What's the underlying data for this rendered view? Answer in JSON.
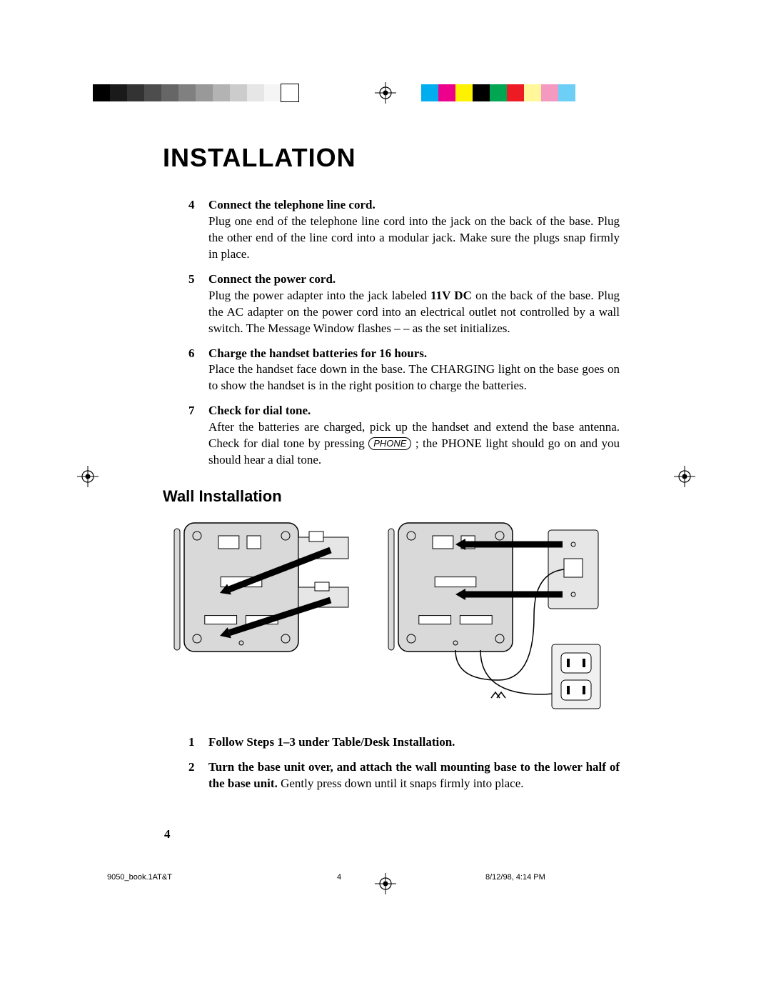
{
  "print_marks": {
    "gray_swatches": [
      "#000000",
      "#1a1a1a",
      "#333333",
      "#4d4d4d",
      "#666666",
      "#808080",
      "#999999",
      "#b3b3b3",
      "#cccccc",
      "#e6e6e6",
      "#f5f5f5",
      "#ffffff"
    ],
    "color_swatches": [
      "#00aeef",
      "#ec008c",
      "#fff200",
      "#000000",
      "#00a651",
      "#ed1c24",
      "#fff799",
      "#f49ac1",
      "#6dcff6"
    ],
    "target_stroke": "#000000"
  },
  "title": "INSTALLATION",
  "steps_a": [
    {
      "num": "4",
      "heading": "Connect the telephone line cord.",
      "text": "Plug one end of the telephone line cord into the jack on the back of the base. Plug the other end of the line cord into a modular jack. Make sure the plugs snap firmly in place."
    },
    {
      "num": "5",
      "heading": "Connect the power cord.",
      "text_pre": "Plug the power adapter into the jack labeled ",
      "text_bold": "11V DC",
      "text_post": " on the back of the base. Plug the AC adapter on the power cord into an electrical outlet not controlled by a wall switch. The Message Window flashes – – as the set initializes."
    },
    {
      "num": "6",
      "heading": "Charge the handset batteries for 16 hours.",
      "text": "Place the handset face down in the base. The CHARGING light on the base goes on to show the handset is in the right position to charge the batteries."
    },
    {
      "num": "7",
      "heading": "Check for dial tone.",
      "text_pre": "After the batteries are charged, pick up the handset and extend the base antenna. Check for dial tone by pressing ",
      "btn": "PHONE",
      "text_post": " ; the PHONE light should go on and you should hear a dial tone."
    }
  ],
  "subhead": "Wall Installation",
  "diagram": {
    "base_fill": "#d9d9d9",
    "base_stroke": "#000000",
    "arrow_fill": "#000000",
    "plate_fill": "#e6e6e6",
    "outlet_fill": "#f0f0f0"
  },
  "steps_b": [
    {
      "num": "1",
      "heading": "Follow Steps 1–3 under Table/Desk Installation."
    },
    {
      "num": "2",
      "heading_pre": "Turn the base unit over, and attach the wall mounting base to the lower half of the base unit.",
      "text": " Gently press down until it snaps firmly into place."
    }
  ],
  "page_number": "4",
  "footer": {
    "left": "9050_book.1AT&T",
    "mid": "4",
    "right": "8/12/98, 4:14 PM"
  }
}
